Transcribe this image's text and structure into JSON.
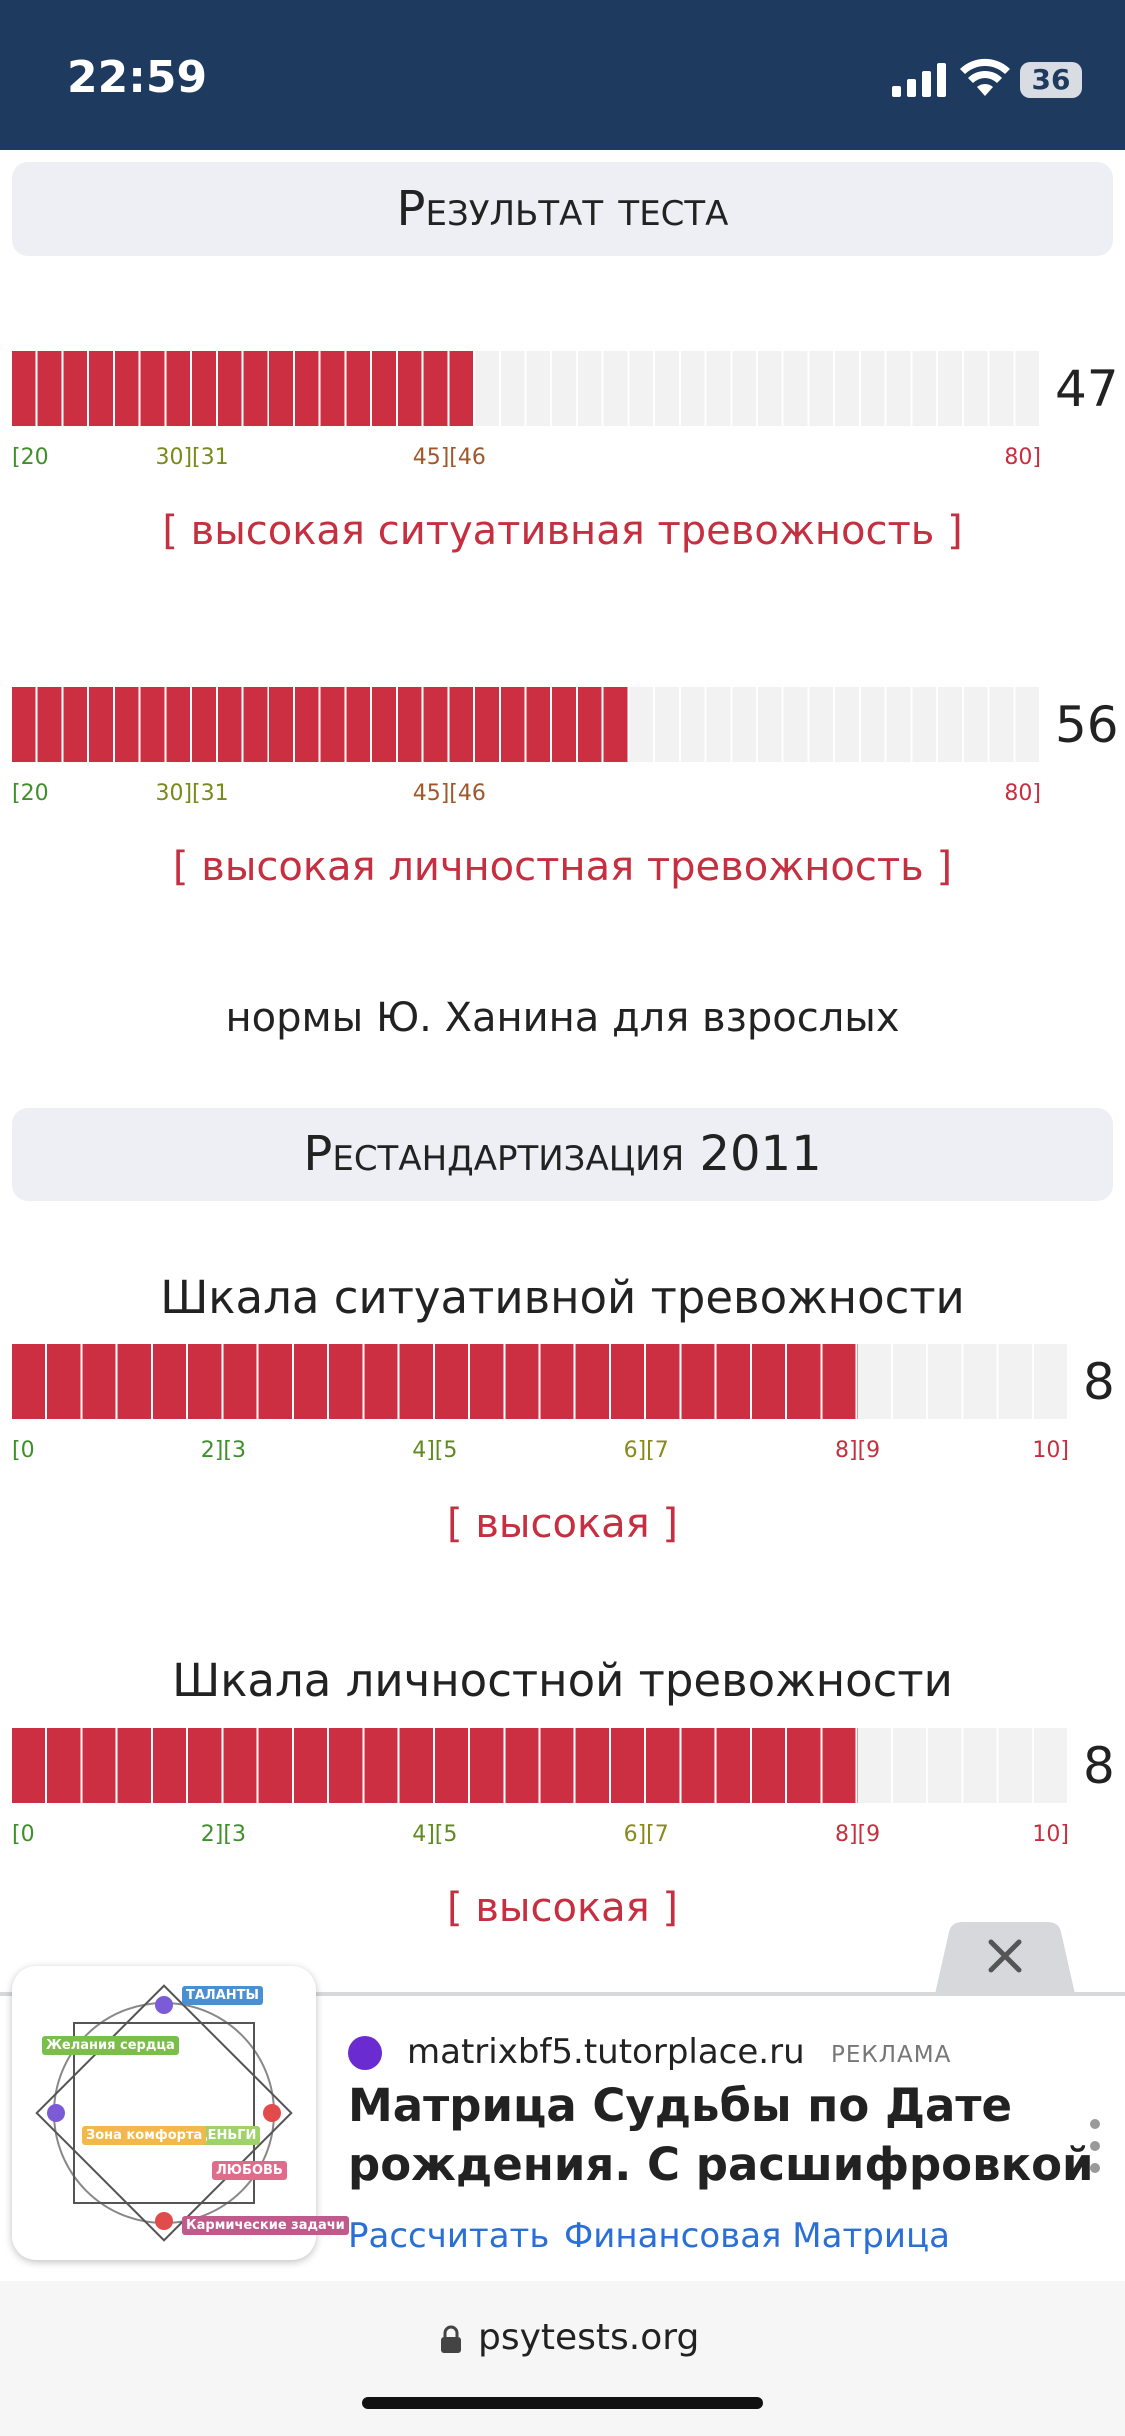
{
  "status": {
    "time": "22:59",
    "battery": "36"
  },
  "sections": [
    {
      "title": "Результат теста",
      "range_colors": [
        "#3f8f2a",
        "#7a8a1a",
        "#a2572a",
        "#c62f3f"
      ],
      "scales": [
        {
          "value": 47,
          "lim": [
            20,
            80
          ],
          "ranges": [
            "[20",
            "30][31",
            "45][46",
            "80]"
          ],
          "verdict": "[ высокая ситуативная тревожность ]"
        },
        {
          "value": 56,
          "lim": [
            20,
            80
          ],
          "ranges": [
            "[20",
            "30][31",
            "45][46",
            "80]"
          ],
          "verdict": "[ высокая личностная тревожность ]"
        }
      ],
      "note": "нормы Ю. Ханина для взрослых"
    },
    {
      "title": "Рестандартизация 2011",
      "range_colors": [
        "#3f8f2a",
        "#3f8f2a",
        "#5e8a1f",
        "#8a8a1a",
        "#c62f3f",
        "#c62f3f"
      ],
      "scales": [
        {
          "name": "Шкала ситуативной тревожности",
          "value": 8,
          "lim": [
            0,
            10
          ],
          "ranges": [
            "[0",
            "2][3",
            "4][5",
            "6][7",
            "8][9",
            "10]"
          ],
          "verdict": "[ высокая ]"
        },
        {
          "name": "Шкала личностной тревожности",
          "value": 8,
          "lim": [
            0,
            10
          ],
          "ranges": [
            "[0",
            "2][3",
            "4][5",
            "6][7",
            "8][9",
            "10]"
          ],
          "verdict": "[ высокая ]"
        }
      ]
    }
  ],
  "ad": {
    "domain": "matrixbf5.tutorplace.ru",
    "tag": "РЕКЛАМА",
    "title_lines": [
      "Матрица Судьбы по Дате",
      "рождения. С расшифровкой"
    ],
    "links": [
      "Рассчитать",
      "Финансовая Матрица"
    ],
    "image_labels": [
      "ТАЛАНТЫ",
      "Желания сердца",
      "ДЕНЬГИ",
      "Зона комфорта",
      "ЛЮБОВЬ",
      "Кармические задачи"
    ]
  },
  "browser": {
    "url": "psytests.org"
  }
}
